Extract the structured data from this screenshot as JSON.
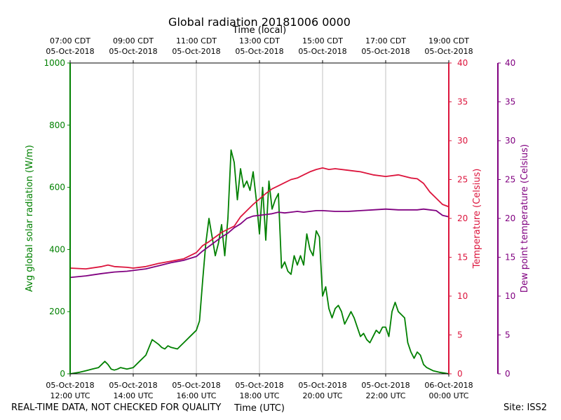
{
  "chart_data": {
    "type": "line",
    "title": "Global radiation 20181006 0000",
    "top_xlabel": "Time (local)",
    "xlabel": "Time (UTC)",
    "left_ylabel": "Avg global solar radiation (W/m)",
    "right_ylabel": "Temperature (Celsius)",
    "far_right_ylabel": "Dew point temperature (Celsius)",
    "x_range_hours_utc": [
      12,
      24
    ],
    "ylim_radiation": [
      0,
      1000
    ],
    "ylim_temperature": [
      0,
      40
    ],
    "ylim_dewpoint": [
      0,
      40
    ],
    "left_ticks": [
      "0",
      "200",
      "400",
      "600",
      "800",
      "1000"
    ],
    "right_ticks": [
      "0",
      "5",
      "10",
      "15",
      "20",
      "25",
      "30",
      "35",
      "40"
    ],
    "bottom_ticks": [
      {
        "hour": 12,
        "line1": "05-Oct-2018",
        "line2": "12:00 UTC"
      },
      {
        "hour": 14,
        "line1": "05-Oct-2018",
        "line2": "14:00 UTC"
      },
      {
        "hour": 16,
        "line1": "05-Oct-2018",
        "line2": "16:00 UTC"
      },
      {
        "hour": 18,
        "line1": "05-Oct-2018",
        "line2": "18:00 UTC"
      },
      {
        "hour": 20,
        "line1": "05-Oct-2018",
        "line2": "20:00 UTC"
      },
      {
        "hour": 22,
        "line1": "05-Oct-2018",
        "line2": "22:00 UTC"
      },
      {
        "hour": 24,
        "line1": "06-Oct-2018",
        "line2": "00:00 UTC"
      }
    ],
    "top_ticks": [
      {
        "hour": 12,
        "line1": "07:00 CDT",
        "line2": "05-Oct-2018"
      },
      {
        "hour": 14,
        "line1": "09:00 CDT",
        "line2": "05-Oct-2018"
      },
      {
        "hour": 16,
        "line1": "11:00 CDT",
        "line2": "05-Oct-2018"
      },
      {
        "hour": 18,
        "line1": "13:00 CDT",
        "line2": "05-Oct-2018"
      },
      {
        "hour": 20,
        "line1": "15:00 CDT",
        "line2": "05-Oct-2018"
      },
      {
        "hour": 22,
        "line1": "17:00 CDT",
        "line2": "05-Oct-2018"
      },
      {
        "hour": 24,
        "line1": "19:00 CDT",
        "line2": "05-Oct-2018"
      }
    ],
    "grid": "vertical",
    "series": [
      {
        "name": "Avg global solar radiation",
        "axis": "radiation",
        "color": "#008000",
        "x": [
          12.0,
          12.3,
          12.5,
          12.7,
          12.9,
          13.0,
          13.1,
          13.2,
          13.3,
          13.4,
          13.5,
          13.6,
          13.8,
          14.0,
          14.2,
          14.4,
          14.6,
          14.8,
          14.9,
          15.0,
          15.1,
          15.2,
          15.4,
          15.5,
          15.6,
          15.8,
          16.0,
          16.1,
          16.2,
          16.3,
          16.4,
          16.5,
          16.6,
          16.7,
          16.8,
          16.9,
          17.0,
          17.1,
          17.2,
          17.3,
          17.4,
          17.5,
          17.6,
          17.7,
          17.8,
          17.9,
          18.0,
          18.1,
          18.2,
          18.3,
          18.4,
          18.5,
          18.6,
          18.7,
          18.8,
          18.9,
          19.0,
          19.1,
          19.2,
          19.3,
          19.4,
          19.5,
          19.6,
          19.7,
          19.8,
          19.9,
          20.0,
          20.1,
          20.2,
          20.3,
          20.4,
          20.5,
          20.6,
          20.7,
          20.8,
          20.9,
          21.0,
          21.1,
          21.2,
          21.3,
          21.4,
          21.5,
          21.6,
          21.7,
          21.8,
          21.9,
          22.0,
          22.1,
          22.2,
          22.3,
          22.4,
          22.5,
          22.6,
          22.7,
          22.8,
          22.9,
          23.0,
          23.1,
          23.2,
          23.3,
          23.4,
          23.5,
          23.7,
          24.0
        ],
        "values": [
          0,
          5,
          10,
          15,
          20,
          30,
          40,
          30,
          15,
          12,
          15,
          20,
          15,
          20,
          40,
          60,
          110,
          95,
          85,
          80,
          90,
          85,
          80,
          90,
          100,
          120,
          140,
          170,
          300,
          420,
          500,
          440,
          380,
          420,
          480,
          380,
          500,
          720,
          680,
          560,
          660,
          600,
          620,
          590,
          650,
          560,
          450,
          600,
          430,
          620,
          530,
          560,
          580,
          340,
          360,
          330,
          320,
          380,
          350,
          380,
          350,
          450,
          400,
          380,
          460,
          440,
          250,
          280,
          210,
          180,
          210,
          220,
          200,
          160,
          180,
          200,
          180,
          150,
          120,
          130,
          110,
          100,
          120,
          140,
          130,
          150,
          150,
          120,
          200,
          230,
          200,
          190,
          180,
          100,
          70,
          50,
          70,
          60,
          30,
          20,
          15,
          10,
          5,
          0
        ]
      },
      {
        "name": "Temperature",
        "axis": "temperature",
        "color": "#dc143c",
        "x": [
          12.0,
          12.5,
          13.0,
          13.2,
          13.4,
          13.8,
          14.0,
          14.4,
          14.8,
          15.2,
          15.6,
          16.0,
          16.2,
          16.4,
          16.6,
          16.8,
          17.0,
          17.2,
          17.4,
          17.6,
          17.8,
          18.0,
          18.2,
          18.4,
          18.6,
          18.8,
          19.0,
          19.2,
          19.4,
          19.6,
          19.8,
          20.0,
          20.2,
          20.4,
          20.8,
          21.2,
          21.6,
          22.0,
          22.4,
          22.8,
          23.0,
          23.2,
          23.4,
          23.6,
          23.8,
          24.0
        ],
        "values": [
          13.6,
          13.5,
          13.8,
          14.0,
          13.8,
          13.7,
          13.6,
          13.8,
          14.2,
          14.5,
          14.8,
          15.6,
          16.5,
          17.0,
          17.6,
          18.2,
          18.6,
          19.0,
          20.2,
          21.0,
          21.8,
          22.5,
          23.2,
          23.8,
          24.2,
          24.6,
          25.0,
          25.2,
          25.6,
          26.0,
          26.3,
          26.5,
          26.3,
          26.4,
          26.2,
          26.0,
          25.6,
          25.4,
          25.6,
          25.2,
          25.1,
          24.5,
          23.4,
          22.6,
          21.8,
          21.5
        ]
      },
      {
        "name": "Dew point temperature",
        "axis": "dewpoint",
        "color": "#800080",
        "x": [
          12.0,
          12.5,
          13.0,
          13.4,
          13.8,
          14.0,
          14.4,
          14.8,
          15.2,
          15.6,
          16.0,
          16.2,
          16.4,
          16.6,
          16.8,
          17.0,
          17.2,
          17.4,
          17.6,
          17.8,
          18.0,
          18.2,
          18.4,
          18.6,
          18.8,
          19.0,
          19.2,
          19.4,
          19.6,
          19.8,
          20.0,
          20.4,
          20.8,
          21.2,
          21.6,
          22.0,
          22.4,
          22.8,
          23.0,
          23.2,
          23.4,
          23.6,
          23.8,
          24.0
        ],
        "values": [
          12.4,
          12.6,
          12.9,
          13.1,
          13.2,
          13.3,
          13.5,
          13.9,
          14.3,
          14.6,
          15.1,
          15.8,
          16.4,
          17.0,
          17.6,
          18.1,
          18.8,
          19.3,
          20.0,
          20.3,
          20.4,
          20.5,
          20.6,
          20.8,
          20.7,
          20.8,
          20.9,
          20.8,
          20.9,
          21.0,
          21.0,
          20.9,
          20.9,
          21.0,
          21.1,
          21.2,
          21.1,
          21.1,
          21.1,
          21.2,
          21.1,
          21.0,
          20.4,
          20.2
        ]
      }
    ],
    "axis_colors": {
      "radiation": "#008000",
      "temperature": "#dc143c",
      "dewpoint": "#800080"
    }
  },
  "footer": {
    "disclaimer": "REAL-TIME DATA, NOT CHECKED FOR QUALITY",
    "site": "Site: ISS2"
  }
}
